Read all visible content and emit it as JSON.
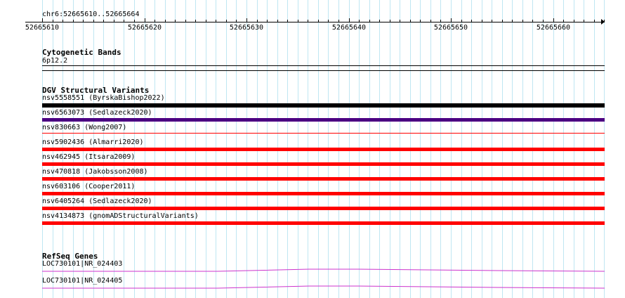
{
  "ruler": {
    "location": "chr6:52665610..52665664",
    "ticks": [
      "52665610",
      "52665620",
      "52665630",
      "52665640",
      "52665650",
      "52665660"
    ]
  },
  "cytobands": {
    "title": "Cytogenetic Bands",
    "band": "6p12.2"
  },
  "dgv": {
    "title": "DGV Structural Variants",
    "features": [
      {
        "label": "nsv5558551 (ByrskaBishop2022)",
        "color": "#000000"
      },
      {
        "label": "nsv6563073 (Sedlazeck2020)",
        "color": "#4b0082"
      },
      {
        "label": "nsv830663 (Wong2007)",
        "color": "#ff0000"
      },
      {
        "label": "nsv5902436 (Almarri2020)",
        "color": "#ff0000"
      },
      {
        "label": "nsv462945 (Itsara2009)",
        "color": "#ff0000"
      },
      {
        "label": "nsv470818 (Jakobsson2008)",
        "color": "#ff0000"
      },
      {
        "label": "nsv603106 (Cooper2011)",
        "color": "#ff0000"
      },
      {
        "label": "nsv6405264 (Sedlazeck2020)",
        "color": "#ff0000"
      },
      {
        "label": "nsv4134873 (gnomADStructuralVariants)",
        "color": "#ff0000"
      }
    ]
  },
  "refseq": {
    "title": "RefSeq Genes",
    "genes": [
      {
        "label": "LOC730101|NR_024403",
        "color": "#cc33cc"
      },
      {
        "label": "LOC730101|NR_024405",
        "color": "#cc33cc"
      }
    ]
  }
}
